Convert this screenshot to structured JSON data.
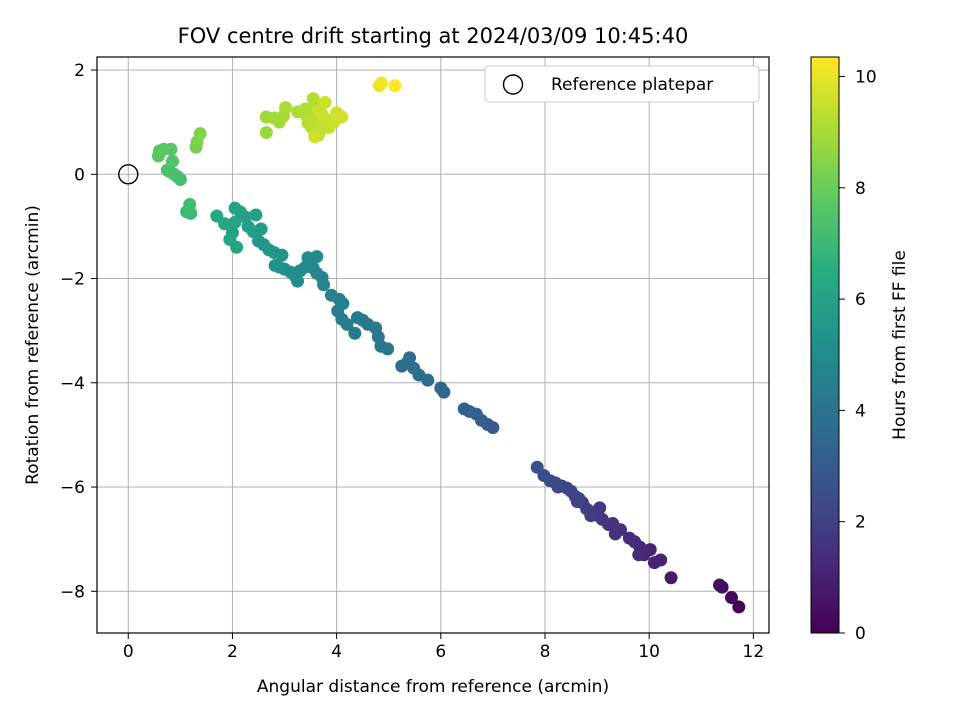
{
  "chart_data": {
    "type": "scatter",
    "title": "FOV centre drift starting at 2024/03/09 10:45:40",
    "xlabel": "Angular distance from reference (arcmin)",
    "ylabel": "Rotation from reference (arcmin)",
    "xlim": [
      -0.6,
      12.3
    ],
    "ylim": [
      -8.8,
      2.25
    ],
    "xticks": [
      0,
      2,
      4,
      6,
      8,
      10,
      12
    ],
    "yticks": [
      -8,
      -6,
      -4,
      -2,
      0,
      2
    ],
    "grid": true,
    "legend": {
      "placement": "top-right",
      "entries": [
        "Reference platepar"
      ]
    },
    "reference_point": {
      "x": 0,
      "y": 0
    },
    "colorbar": {
      "label": "Hours from first FF file",
      "min": 0,
      "max": 10.35,
      "ticks": [
        0,
        2,
        4,
        6,
        8,
        10
      ],
      "colormap": "viridis"
    },
    "series": [
      {
        "points": [
          [
            11.72,
            -8.3,
            0.05
          ],
          [
            11.58,
            -8.12,
            0.2
          ],
          [
            11.4,
            -7.92,
            0.35
          ],
          [
            11.35,
            -7.88,
            0.45
          ],
          [
            10.42,
            -7.74,
            0.8
          ],
          [
            10.22,
            -7.4,
            1.0
          ],
          [
            10.1,
            -7.45,
            1.05
          ],
          [
            10.02,
            -7.2,
            1.1
          ],
          [
            9.9,
            -7.3,
            1.15
          ],
          [
            9.82,
            -7.15,
            1.2
          ],
          [
            9.72,
            -7.05,
            1.3
          ],
          [
            9.8,
            -7.3,
            1.25
          ],
          [
            9.62,
            -6.98,
            1.35
          ],
          [
            9.45,
            -6.82,
            1.5
          ],
          [
            9.35,
            -6.9,
            1.55
          ],
          [
            9.22,
            -6.72,
            1.6
          ],
          [
            9.1,
            -6.62,
            1.7
          ],
          [
            9.02,
            -6.55,
            1.75
          ],
          [
            8.95,
            -6.48,
            1.8
          ],
          [
            8.88,
            -6.55,
            1.85
          ],
          [
            8.8,
            -6.42,
            1.9
          ],
          [
            8.72,
            -6.3,
            1.95
          ],
          [
            8.65,
            -6.22,
            2.0
          ],
          [
            8.58,
            -6.18,
            2.05
          ],
          [
            8.5,
            -6.08,
            2.1
          ],
          [
            8.42,
            -6.02,
            2.15
          ],
          [
            8.32,
            -5.98,
            2.2
          ],
          [
            8.2,
            -5.92,
            2.3
          ],
          [
            8.1,
            -5.88,
            2.4
          ],
          [
            7.98,
            -5.78,
            2.5
          ],
          [
            7.85,
            -5.62,
            2.6
          ],
          [
            8.25,
            -6.0,
            2.3
          ],
          [
            8.62,
            -6.28,
            2.05
          ],
          [
            9.05,
            -6.4,
            1.7
          ],
          [
            9.3,
            -6.7,
            1.6
          ],
          [
            7.0,
            -4.86,
            3.0
          ],
          [
            6.9,
            -4.8,
            3.05
          ],
          [
            6.78,
            -4.72,
            3.1
          ],
          [
            6.68,
            -4.6,
            3.15
          ],
          [
            6.55,
            -4.55,
            3.2
          ],
          [
            6.45,
            -4.5,
            3.25
          ],
          [
            6.06,
            -4.18,
            3.5
          ],
          [
            6.0,
            -4.1,
            3.55
          ],
          [
            5.75,
            -3.95,
            3.65
          ],
          [
            5.58,
            -3.85,
            3.7
          ],
          [
            5.48,
            -3.72,
            3.75
          ],
          [
            5.35,
            -3.62,
            3.8
          ],
          [
            5.25,
            -3.68,
            3.85
          ],
          [
            5.4,
            -3.52,
            3.82
          ],
          [
            4.98,
            -3.35,
            4.0
          ],
          [
            4.85,
            -3.3,
            4.05
          ],
          [
            4.8,
            -3.12,
            4.1
          ],
          [
            4.75,
            -2.95,
            4.15
          ],
          [
            4.6,
            -2.88,
            4.2
          ],
          [
            4.5,
            -2.8,
            4.25
          ],
          [
            4.4,
            -2.75,
            4.3
          ],
          [
            4.35,
            -3.05,
            4.2
          ],
          [
            4.2,
            -2.88,
            4.35
          ],
          [
            4.1,
            -2.78,
            4.4
          ],
          [
            4.02,
            -2.62,
            4.45
          ],
          [
            4.05,
            -2.4,
            4.5
          ],
          [
            4.12,
            -2.48,
            4.55
          ],
          [
            3.9,
            -2.32,
            4.6
          ],
          [
            3.75,
            -2.12,
            4.65
          ],
          [
            3.72,
            -1.98,
            4.7
          ],
          [
            3.62,
            -1.9,
            4.8
          ],
          [
            3.55,
            -1.8,
            4.85
          ],
          [
            3.48,
            -1.72,
            4.9
          ],
          [
            3.4,
            -1.78,
            4.95
          ],
          [
            3.3,
            -1.85,
            5.0
          ],
          [
            3.2,
            -1.95,
            5.05
          ],
          [
            3.12,
            -1.88,
            5.1
          ],
          [
            3.0,
            -1.82,
            5.15
          ],
          [
            2.9,
            -1.78,
            5.2
          ],
          [
            2.82,
            -1.75,
            5.25
          ],
          [
            3.45,
            -1.6,
            4.98
          ],
          [
            3.62,
            -1.58,
            5.0
          ],
          [
            3.25,
            -2.05,
            5.05
          ],
          [
            2.95,
            -1.55,
            5.4
          ],
          [
            2.8,
            -1.5,
            5.45
          ],
          [
            2.7,
            -1.45,
            5.5
          ],
          [
            2.6,
            -1.35,
            5.55
          ],
          [
            2.5,
            -1.28,
            5.6
          ],
          [
            2.4,
            -1.1,
            5.7
          ],
          [
            2.45,
            -0.78,
            5.8
          ],
          [
            2.3,
            -1.0,
            5.85
          ],
          [
            2.25,
            -0.82,
            5.9
          ],
          [
            2.15,
            -0.72,
            5.95
          ],
          [
            2.05,
            -0.65,
            6.0
          ],
          [
            2.05,
            -0.92,
            6.05
          ],
          [
            2.0,
            -1.12,
            6.0
          ],
          [
            1.95,
            -1.25,
            6.1
          ],
          [
            1.85,
            -0.95,
            6.15
          ],
          [
            1.7,
            -0.8,
            6.25
          ],
          [
            2.08,
            -1.4,
            6.05
          ],
          [
            2.55,
            -1.05,
            5.65
          ],
          [
            1.2,
            -0.75,
            7.0
          ],
          [
            1.12,
            -0.72,
            7.05
          ],
          [
            1.18,
            -0.58,
            7.1
          ],
          [
            1.0,
            -0.1,
            7.2
          ],
          [
            0.95,
            -0.05,
            7.25
          ],
          [
            0.88,
            0.0,
            7.3
          ],
          [
            0.8,
            0.05,
            7.35
          ],
          [
            0.75,
            0.08,
            7.4
          ],
          [
            0.85,
            0.25,
            7.5
          ],
          [
            0.82,
            0.48,
            7.6
          ],
          [
            0.68,
            0.48,
            7.65
          ],
          [
            0.6,
            0.45,
            7.7
          ],
          [
            0.58,
            0.35,
            7.72
          ],
          [
            1.3,
            0.52,
            8.2
          ],
          [
            1.32,
            0.62,
            8.3
          ],
          [
            1.38,
            0.78,
            8.4
          ],
          [
            2.65,
            0.8,
            8.8
          ],
          [
            2.65,
            1.1,
            8.85
          ],
          [
            2.8,
            1.08,
            8.9
          ],
          [
            2.9,
            1.0,
            8.95
          ],
          [
            2.98,
            1.12,
            9.0
          ],
          [
            3.02,
            1.28,
            9.05
          ],
          [
            3.25,
            1.2,
            9.1
          ],
          [
            3.4,
            1.15,
            9.15
          ],
          [
            3.45,
            0.98,
            9.2
          ],
          [
            3.55,
            1.45,
            9.22
          ],
          [
            3.6,
            1.3,
            9.25
          ],
          [
            3.52,
            0.9,
            9.3
          ],
          [
            3.6,
            0.8,
            9.35
          ],
          [
            3.65,
            0.75,
            9.4
          ],
          [
            3.7,
            0.85,
            9.4
          ],
          [
            3.75,
            0.95,
            9.45
          ],
          [
            3.68,
            1.05,
            9.45
          ],
          [
            3.72,
            1.15,
            9.5
          ],
          [
            3.8,
            1.05,
            9.5
          ],
          [
            3.65,
            1.2,
            9.55
          ],
          [
            3.78,
            1.38,
            9.55
          ],
          [
            3.58,
            0.72,
            9.6
          ],
          [
            3.5,
            1.08,
            9.3
          ],
          [
            3.85,
            0.9,
            9.5
          ],
          [
            3.4,
            1.25,
            9.15
          ],
          [
            4.0,
            1.18,
            9.65
          ],
          [
            4.1,
            1.1,
            9.7
          ],
          [
            3.95,
            1.0,
            9.6
          ],
          [
            4.82,
            1.7,
            10.1
          ],
          [
            4.86,
            1.75,
            10.15
          ],
          [
            5.12,
            1.7,
            10.3
          ]
        ]
      }
    ]
  }
}
